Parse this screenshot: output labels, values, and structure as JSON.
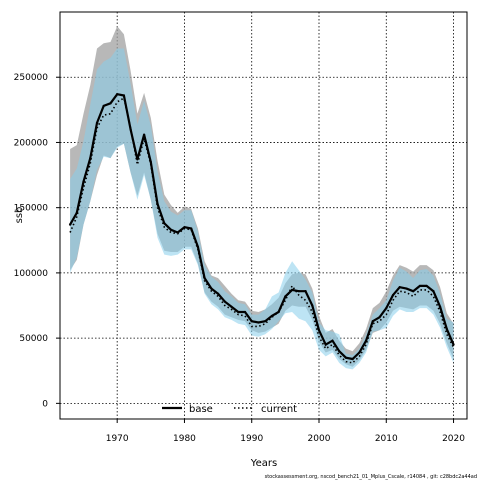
{
  "chart_data": {
    "type": "area",
    "title": "",
    "xlabel": "Years",
    "ylabel": "ssb",
    "xlim": [
      1961.5,
      2022
    ],
    "ylim": [
      -12000,
      300000
    ],
    "x_ticks": [
      1970,
      1980,
      1990,
      2000,
      2010,
      2020
    ],
    "y_ticks": [
      0,
      50000,
      100000,
      150000,
      200000,
      250000
    ],
    "grid": true,
    "legend_position": "bottom-center",
    "footnote": "stockassessment.org, nscod_bench21_01_Mplus_Cscale, r14084 , git: c28bdc2a44ad",
    "x": [
      1963,
      1964,
      1965,
      1966,
      1967,
      1968,
      1969,
      1970,
      1971,
      1972,
      1973,
      1974,
      1975,
      1976,
      1977,
      1978,
      1979,
      1980,
      1981,
      1982,
      1983,
      1984,
      1985,
      1986,
      1987,
      1988,
      1989,
      1990,
      1991,
      1992,
      1993,
      1994,
      1995,
      1996,
      1997,
      1998,
      1999,
      2000,
      2001,
      2002,
      2003,
      2004,
      2005,
      2006,
      2007,
      2008,
      2009,
      2010,
      2011,
      2012,
      2013,
      2014,
      2015,
      2016,
      2017,
      2018,
      2019,
      2020
    ],
    "series": [
      {
        "name": "base",
        "color": "#000000",
        "band_color": "#a0a0a0",
        "values": [
          137000,
          146000,
          170000,
          188000,
          215000,
          228000,
          230000,
          237000,
          236000,
          210000,
          187000,
          206000,
          185000,
          153000,
          138000,
          133000,
          131000,
          135000,
          134000,
          120000,
          96000,
          88000,
          84000,
          78000,
          74000,
          70000,
          70000,
          63000,
          62000,
          63000,
          67000,
          70000,
          82000,
          87000,
          86000,
          86000,
          75000,
          56000,
          45000,
          48000,
          40000,
          35000,
          34000,
          39000,
          48000,
          63000,
          66000,
          73000,
          83000,
          89000,
          88000,
          86000,
          90000,
          90000,
          86000,
          74000,
          57000,
          45000
        ],
        "lower": [
          102000,
          110000,
          137000,
          155000,
          175000,
          190000,
          188000,
          197000,
          199000,
          177000,
          159000,
          177000,
          156000,
          130000,
          117000,
          116000,
          116000,
          120000,
          120000,
          107000,
          85000,
          78000,
          74000,
          68000,
          66000,
          64000,
          63000,
          56000,
          54000,
          55000,
          58000,
          61000,
          71000,
          75000,
          74000,
          74000,
          64000,
          47000,
          39000,
          41000,
          34000,
          30000,
          28000,
          33000,
          41000,
          54000,
          56000,
          62000,
          71000,
          74000,
          73000,
          72000,
          75000,
          75000,
          71000,
          61000,
          46000,
          34000
        ],
        "upper": [
          195000,
          198000,
          222000,
          244000,
          272000,
          276000,
          277000,
          289000,
          283000,
          255000,
          222000,
          238000,
          219000,
          186000,
          160000,
          152000,
          146000,
          151000,
          149000,
          134000,
          109000,
          98000,
          96000,
          90000,
          84000,
          79000,
          78000,
          71000,
          70000,
          72000,
          76000,
          81000,
          92000,
          99000,
          100000,
          99000,
          88000,
          67000,
          54000,
          57000,
          48000,
          42000,
          40000,
          46000,
          57000,
          73000,
          77000,
          86000,
          98000,
          106000,
          104000,
          101000,
          106000,
          106000,
          102000,
          89000,
          69000,
          61000
        ]
      },
      {
        "name": "current",
        "color": "#000000",
        "band_color": "#87ceeb",
        "values": [
          131000,
          143000,
          165000,
          184000,
          211000,
          221000,
          222000,
          231000,
          234000,
          211000,
          183000,
          203000,
          183000,
          150000,
          135000,
          131000,
          130000,
          134000,
          133000,
          118000,
          94000,
          86000,
          82000,
          75000,
          72000,
          68000,
          67000,
          59000,
          59000,
          61000,
          66000,
          70000,
          79000,
          90000,
          83000,
          79000,
          70000,
          51000,
          42000,
          45000,
          37000,
          32000,
          31000,
          36000,
          45000,
          61000,
          63000,
          68000,
          79000,
          86000,
          85000,
          82000,
          87000,
          87000,
          82000,
          70000,
          53000,
          43000
        ],
        "lower": [
          100000,
          112000,
          137000,
          155000,
          179000,
          189000,
          188000,
          196000,
          199000,
          177000,
          156000,
          175000,
          156000,
          127000,
          114000,
          113000,
          114000,
          118000,
          118000,
          106000,
          84000,
          76000,
          72000,
          66000,
          64000,
          61000,
          60000,
          52000,
          51000,
          53000,
          57000,
          63000,
          69000,
          70000,
          65000,
          63000,
          56000,
          41000,
          36000,
          39000,
          31000,
          27000,
          26000,
          31000,
          39000,
          55000,
          56000,
          58000,
          67000,
          72000,
          70000,
          70000,
          73000,
          73000,
          68000,
          58000,
          43000,
          31000
        ],
        "upper": [
          172000,
          180000,
          201000,
          229000,
          256000,
          262000,
          265000,
          272000,
          272000,
          245000,
          214000,
          232000,
          213000,
          178000,
          155000,
          147000,
          144000,
          148000,
          148000,
          132000,
          106000,
          97000,
          93000,
          86000,
          82000,
          77000,
          76000,
          68000,
          68000,
          72000,
          82000,
          85000,
          100000,
          109000,
          102000,
          95000,
          85000,
          62000,
          56000,
          55000,
          53000,
          38000,
          37000,
          42000,
          53000,
          68000,
          73000,
          79000,
          94000,
          104000,
          101000,
          96000,
          102000,
          103000,
          98000,
          84000,
          65000,
          62000
        ]
      }
    ]
  }
}
